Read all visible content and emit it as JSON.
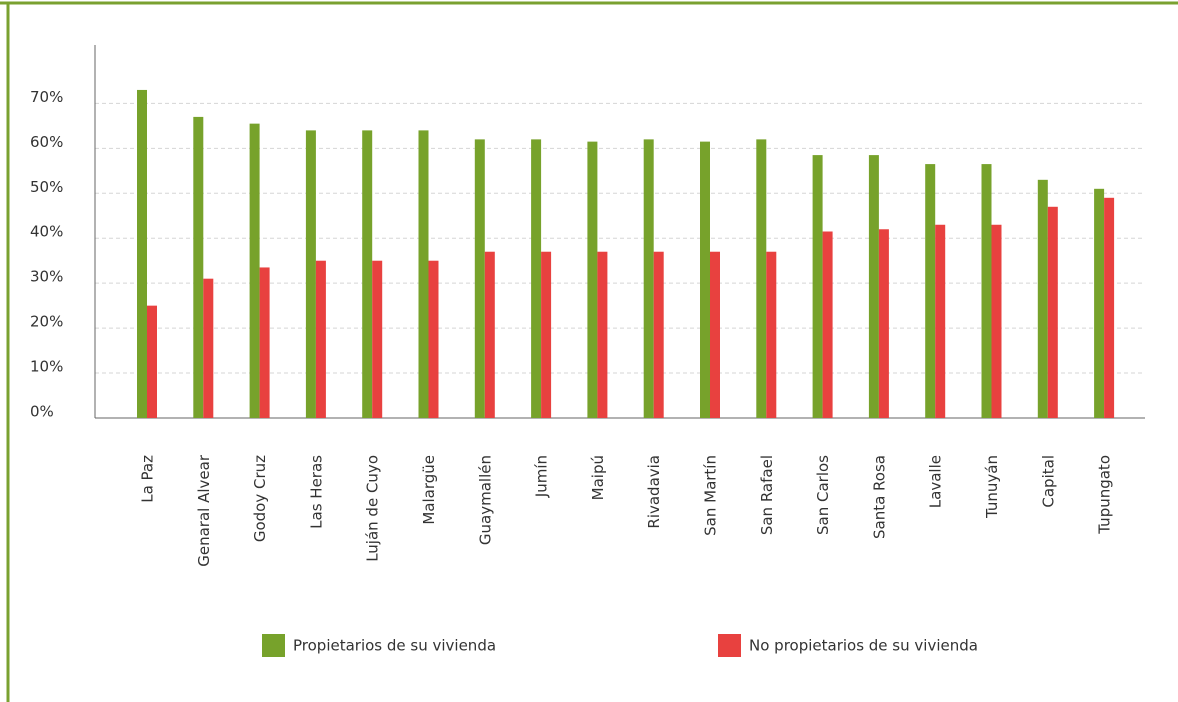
{
  "chart_data": {
    "type": "bar",
    "categories": [
      "La Paz",
      "Genaral Alvear",
      "Godoy Cruz",
      "Las Heras",
      "Luján de Cuyo",
      "Malargüe",
      "Guaymallén",
      "Jumín",
      "Maipú",
      "Rivadavia",
      "San Martín",
      "San Rafael",
      "San Carlos",
      "Santa Rosa",
      "Lavalle",
      "Tunuyán",
      "Capital",
      "Tupungato"
    ],
    "series": [
      {
        "name": "Propietarios de su vivienda",
        "color": "#77a22b",
        "values": [
          73,
          67,
          65.5,
          64,
          64,
          64,
          62,
          62,
          61.5,
          62,
          61.5,
          62,
          58.5,
          58.5,
          56.5,
          56.5,
          53,
          51
        ]
      },
      {
        "name": "No propietarios de su vivienda",
        "color": "#e8413f",
        "values": [
          25,
          31,
          33.5,
          35,
          35,
          35,
          37,
          37,
          37,
          37,
          37,
          37,
          41.5,
          42,
          43,
          43,
          47,
          49
        ]
      }
    ],
    "ylim": [
      0,
      83
    ],
    "yticks": [
      {
        "value": 0,
        "label": "0%"
      },
      {
        "value": 10,
        "label": "10%"
      },
      {
        "value": 20,
        "label": "20%"
      },
      {
        "value": 30,
        "label": "30%"
      },
      {
        "value": 40,
        "label": "40%"
      },
      {
        "value": 50,
        "label": "50%"
      },
      {
        "value": 60,
        "label": "60%"
      },
      {
        "value": 70,
        "label": "70%"
      }
    ],
    "grid": true
  }
}
